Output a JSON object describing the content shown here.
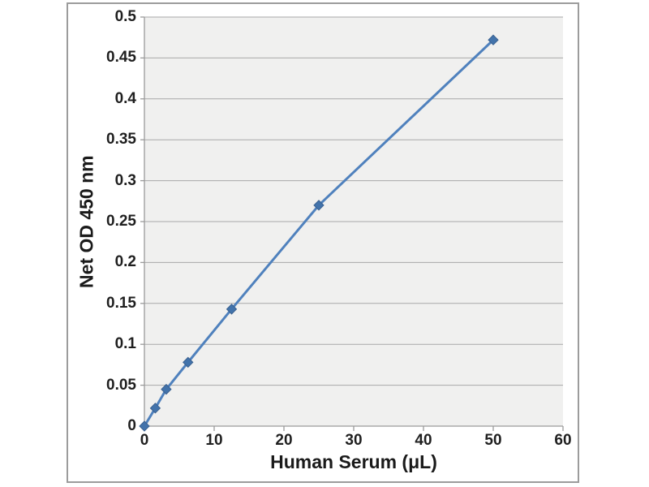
{
  "chart_data": {
    "type": "line",
    "title": "",
    "xlabel": "Human Serum (μL)",
    "ylabel": "Net OD 450 nm",
    "x": [
      0,
      1.56,
      3.13,
      6.25,
      12.5,
      25,
      50
    ],
    "y": [
      0,
      0.022,
      0.045,
      0.078,
      0.143,
      0.27,
      0.472
    ],
    "xlim": [
      0,
      60
    ],
    "ylim": [
      0,
      0.5
    ],
    "x_ticks": [
      0,
      10,
      20,
      30,
      40,
      50,
      60
    ],
    "x_tick_labels": [
      "0",
      "10",
      "20",
      "30",
      "40",
      "50",
      "60"
    ],
    "y_ticks": [
      0,
      0.05,
      0.1,
      0.15,
      0.2,
      0.25,
      0.3,
      0.35,
      0.4,
      0.45,
      0.5
    ],
    "y_tick_labels": [
      "0",
      "0.05",
      "0.1",
      "0.15",
      "0.2",
      "0.25",
      "0.3",
      "0.35",
      "0.4",
      "0.45",
      "0.5"
    ],
    "grid": "horizontal",
    "legend_position": "none",
    "marker": "diamond",
    "colors": {
      "line": "#4f81bd",
      "marker_fill": "#4273ab",
      "marker_stroke": "#3a6190",
      "plot_bg": "#f0f0ef",
      "gridline": "#a8a8a8",
      "axis": "#9a9a9a",
      "frame_border": "#9c9c9c",
      "text": "#1f1f1f",
      "page_bg": "#ffffff"
    }
  }
}
